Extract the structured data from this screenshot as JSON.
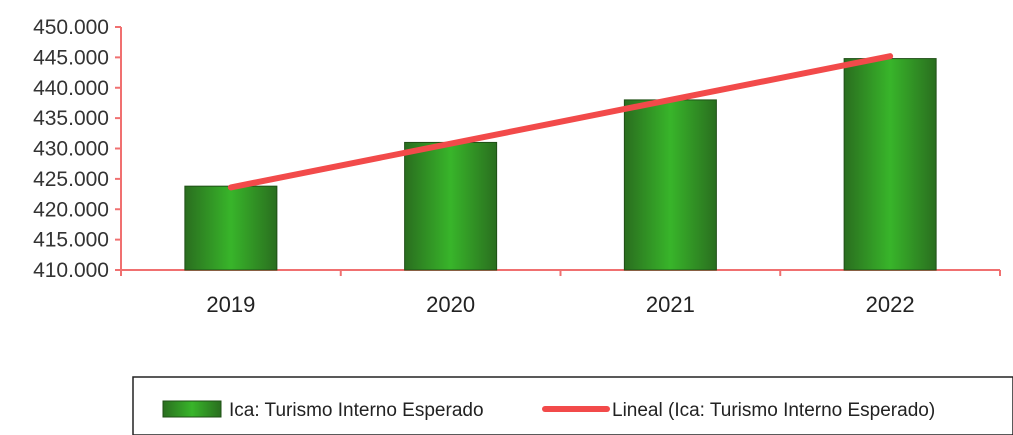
{
  "chart_data": {
    "type": "bar",
    "categories": [
      "2019",
      "2020",
      "2021",
      "2022"
    ],
    "series": [
      {
        "name": "Ica: Turismo Interno Esperado",
        "values": [
          423800,
          431000,
          438000,
          444800
        ]
      }
    ],
    "trendline": {
      "name": "Lineal (Ica: Turismo Interno Esperado)",
      "values": [
        423600,
        430800,
        438000,
        445200
      ]
    },
    "yticks": [
      "410.000",
      "415.000",
      "420.000",
      "425.000",
      "430.000",
      "435.000",
      "440.000",
      "445.000",
      "450.000"
    ],
    "ylim": [
      410000,
      450000
    ],
    "grid": false,
    "legend": "bottom",
    "colors": {
      "bar_edge": "#2a6e1f",
      "bar_mid": "#38b52a",
      "trend": "#f24a4a",
      "axis": "#f07070"
    }
  }
}
